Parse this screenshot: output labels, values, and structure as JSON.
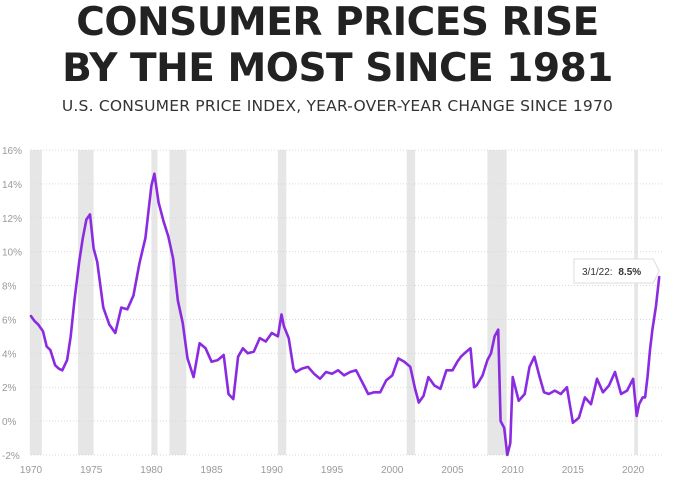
{
  "title_line1": "CONSUMER PRICES RISE",
  "title_line2": "BY THE MOST SINCE 1981",
  "subtitle": "U.S. CONSUMER PRICE INDEX, YEAR-OVER-YEAR CHANGE SINCE 1970",
  "colors": {
    "line": "#8a2be2",
    "recession": "#e6e6e6",
    "grid": "#d9d9d9",
    "tick": "#9a9a9a",
    "title": "#222222"
  },
  "chart_data": {
    "type": "line",
    "title": "CONSUMER PRICES RISE BY THE MOST SINCE 1981",
    "subtitle": "U.S. CONSUMER PRICE INDEX, YEAR-OVER-YEAR CHANGE SINCE 1970",
    "xlabel": "",
    "ylabel": "",
    "xlim": [
      1970,
      2022.4
    ],
    "ylim": [
      -2,
      16
    ],
    "grid": true,
    "x_ticks": [
      1970,
      1975,
      1980,
      1985,
      1990,
      1995,
      2000,
      2005,
      2010,
      2015,
      2020
    ],
    "x_tick_labels": [
      "1970",
      "1975",
      "1980",
      "1985",
      "1990",
      "1995",
      "2000",
      "2005",
      "2010",
      "2015",
      "2020"
    ],
    "y_ticks": [
      -2,
      0,
      2,
      4,
      6,
      8,
      10,
      12,
      14,
      16
    ],
    "y_tick_labels": [
      "-2%",
      "0%",
      "2%",
      "4%",
      "6%",
      "8%",
      "10%",
      "12%",
      "14%",
      "16%"
    ],
    "recessions": [
      [
        1969.9,
        1970.9
      ],
      [
        1973.9,
        1975.2
      ],
      [
        1980.0,
        1980.5
      ],
      [
        1981.5,
        1982.9
      ],
      [
        1990.5,
        1991.2
      ],
      [
        2001.2,
        2001.9
      ],
      [
        2007.9,
        2009.5
      ],
      [
        2020.1,
        2020.4
      ]
    ],
    "annotation": {
      "x": 2022.17,
      "y": 8.5,
      "date": "3/1/22:",
      "value": "8.5%"
    },
    "series": [
      {
        "x": [
          1970.0,
          1970.3,
          1970.6,
          1971.0,
          1971.3,
          1971.6,
          1972.0,
          1972.3,
          1972.6,
          1973.0,
          1973.3,
          1973.6,
          1974.0,
          1974.3,
          1974.6,
          1974.9,
          1975.2,
          1975.5,
          1976.0,
          1976.5,
          1977.0,
          1977.5,
          1978.0,
          1978.5,
          1979.0,
          1979.5,
          1980.0,
          1980.25,
          1980.6,
          1981.0,
          1981.4,
          1981.8,
          1982.2,
          1982.6,
          1983.0,
          1983.5,
          1984.0,
          1984.5,
          1985.0,
          1985.5,
          1986.0,
          1986.4,
          1986.8,
          1987.2,
          1987.6,
          1988.0,
          1988.5,
          1989.0,
          1989.5,
          1990.0,
          1990.5,
          1990.8,
          1991.0,
          1991.4,
          1991.8,
          1992.0,
          1992.5,
          1993.0,
          1993.5,
          1994.0,
          1994.5,
          1995.0,
          1995.5,
          1996.0,
          1996.5,
          1997.0,
          1997.5,
          1998.0,
          1998.5,
          1999.0,
          1999.5,
          2000.0,
          2000.5,
          2001.0,
          2001.5,
          2001.9,
          2002.2,
          2002.6,
          2003.0,
          2003.5,
          2004.0,
          2004.5,
          2005.0,
          2005.4,
          2005.7,
          2006.0,
          2006.5,
          2006.8,
          2007.0,
          2007.5,
          2007.9,
          2008.2,
          2008.5,
          2008.8,
          2009.0,
          2009.3,
          2009.55,
          2009.8,
          2010.0,
          2010.5,
          2011.0,
          2011.4,
          2011.8,
          2012.2,
          2012.6,
          2013.0,
          2013.5,
          2014.0,
          2014.5,
          2015.0,
          2015.5,
          2016.0,
          2016.5,
          2017.0,
          2017.5,
          2018.0,
          2018.5,
          2019.0,
          2019.5,
          2020.0,
          2020.3,
          2020.5,
          2020.8,
          2021.0,
          2021.2,
          2021.4,
          2021.6,
          2021.9,
          2022.17
        ],
        "values": [
          6.2,
          5.9,
          5.7,
          5.3,
          4.4,
          4.2,
          3.3,
          3.1,
          3.0,
          3.6,
          5.0,
          7.1,
          9.4,
          10.8,
          11.9,
          12.2,
          10.2,
          9.4,
          6.7,
          5.7,
          5.2,
          6.7,
          6.6,
          7.4,
          9.3,
          10.8,
          13.9,
          14.6,
          12.9,
          11.8,
          10.9,
          9.6,
          7.1,
          5.8,
          3.7,
          2.6,
          4.6,
          4.3,
          3.5,
          3.6,
          3.9,
          1.6,
          1.3,
          3.8,
          4.3,
          4.0,
          4.1,
          4.9,
          4.7,
          5.2,
          5.0,
          6.3,
          5.6,
          4.9,
          3.1,
          2.9,
          3.1,
          3.2,
          2.8,
          2.5,
          2.9,
          2.8,
          3.0,
          2.7,
          2.9,
          3.0,
          2.3,
          1.6,
          1.7,
          1.7,
          2.4,
          2.7,
          3.7,
          3.5,
          3.2,
          1.9,
          1.1,
          1.5,
          2.6,
          2.1,
          1.9,
          3.0,
          3.0,
          3.5,
          3.8,
          4.0,
          4.3,
          2.0,
          2.1,
          2.7,
          3.6,
          4.0,
          5.0,
          5.4,
          0.0,
          -0.4,
          -2.0,
          -1.3,
          2.6,
          1.2,
          1.6,
          3.2,
          3.8,
          2.7,
          1.7,
          1.6,
          1.8,
          1.6,
          2.0,
          -0.1,
          0.2,
          1.4,
          1.0,
          2.5,
          1.7,
          2.1,
          2.9,
          1.6,
          1.8,
          2.5,
          0.3,
          1.0,
          1.4,
          1.4,
          2.6,
          4.2,
          5.4,
          6.8,
          8.5
        ]
      }
    ]
  }
}
